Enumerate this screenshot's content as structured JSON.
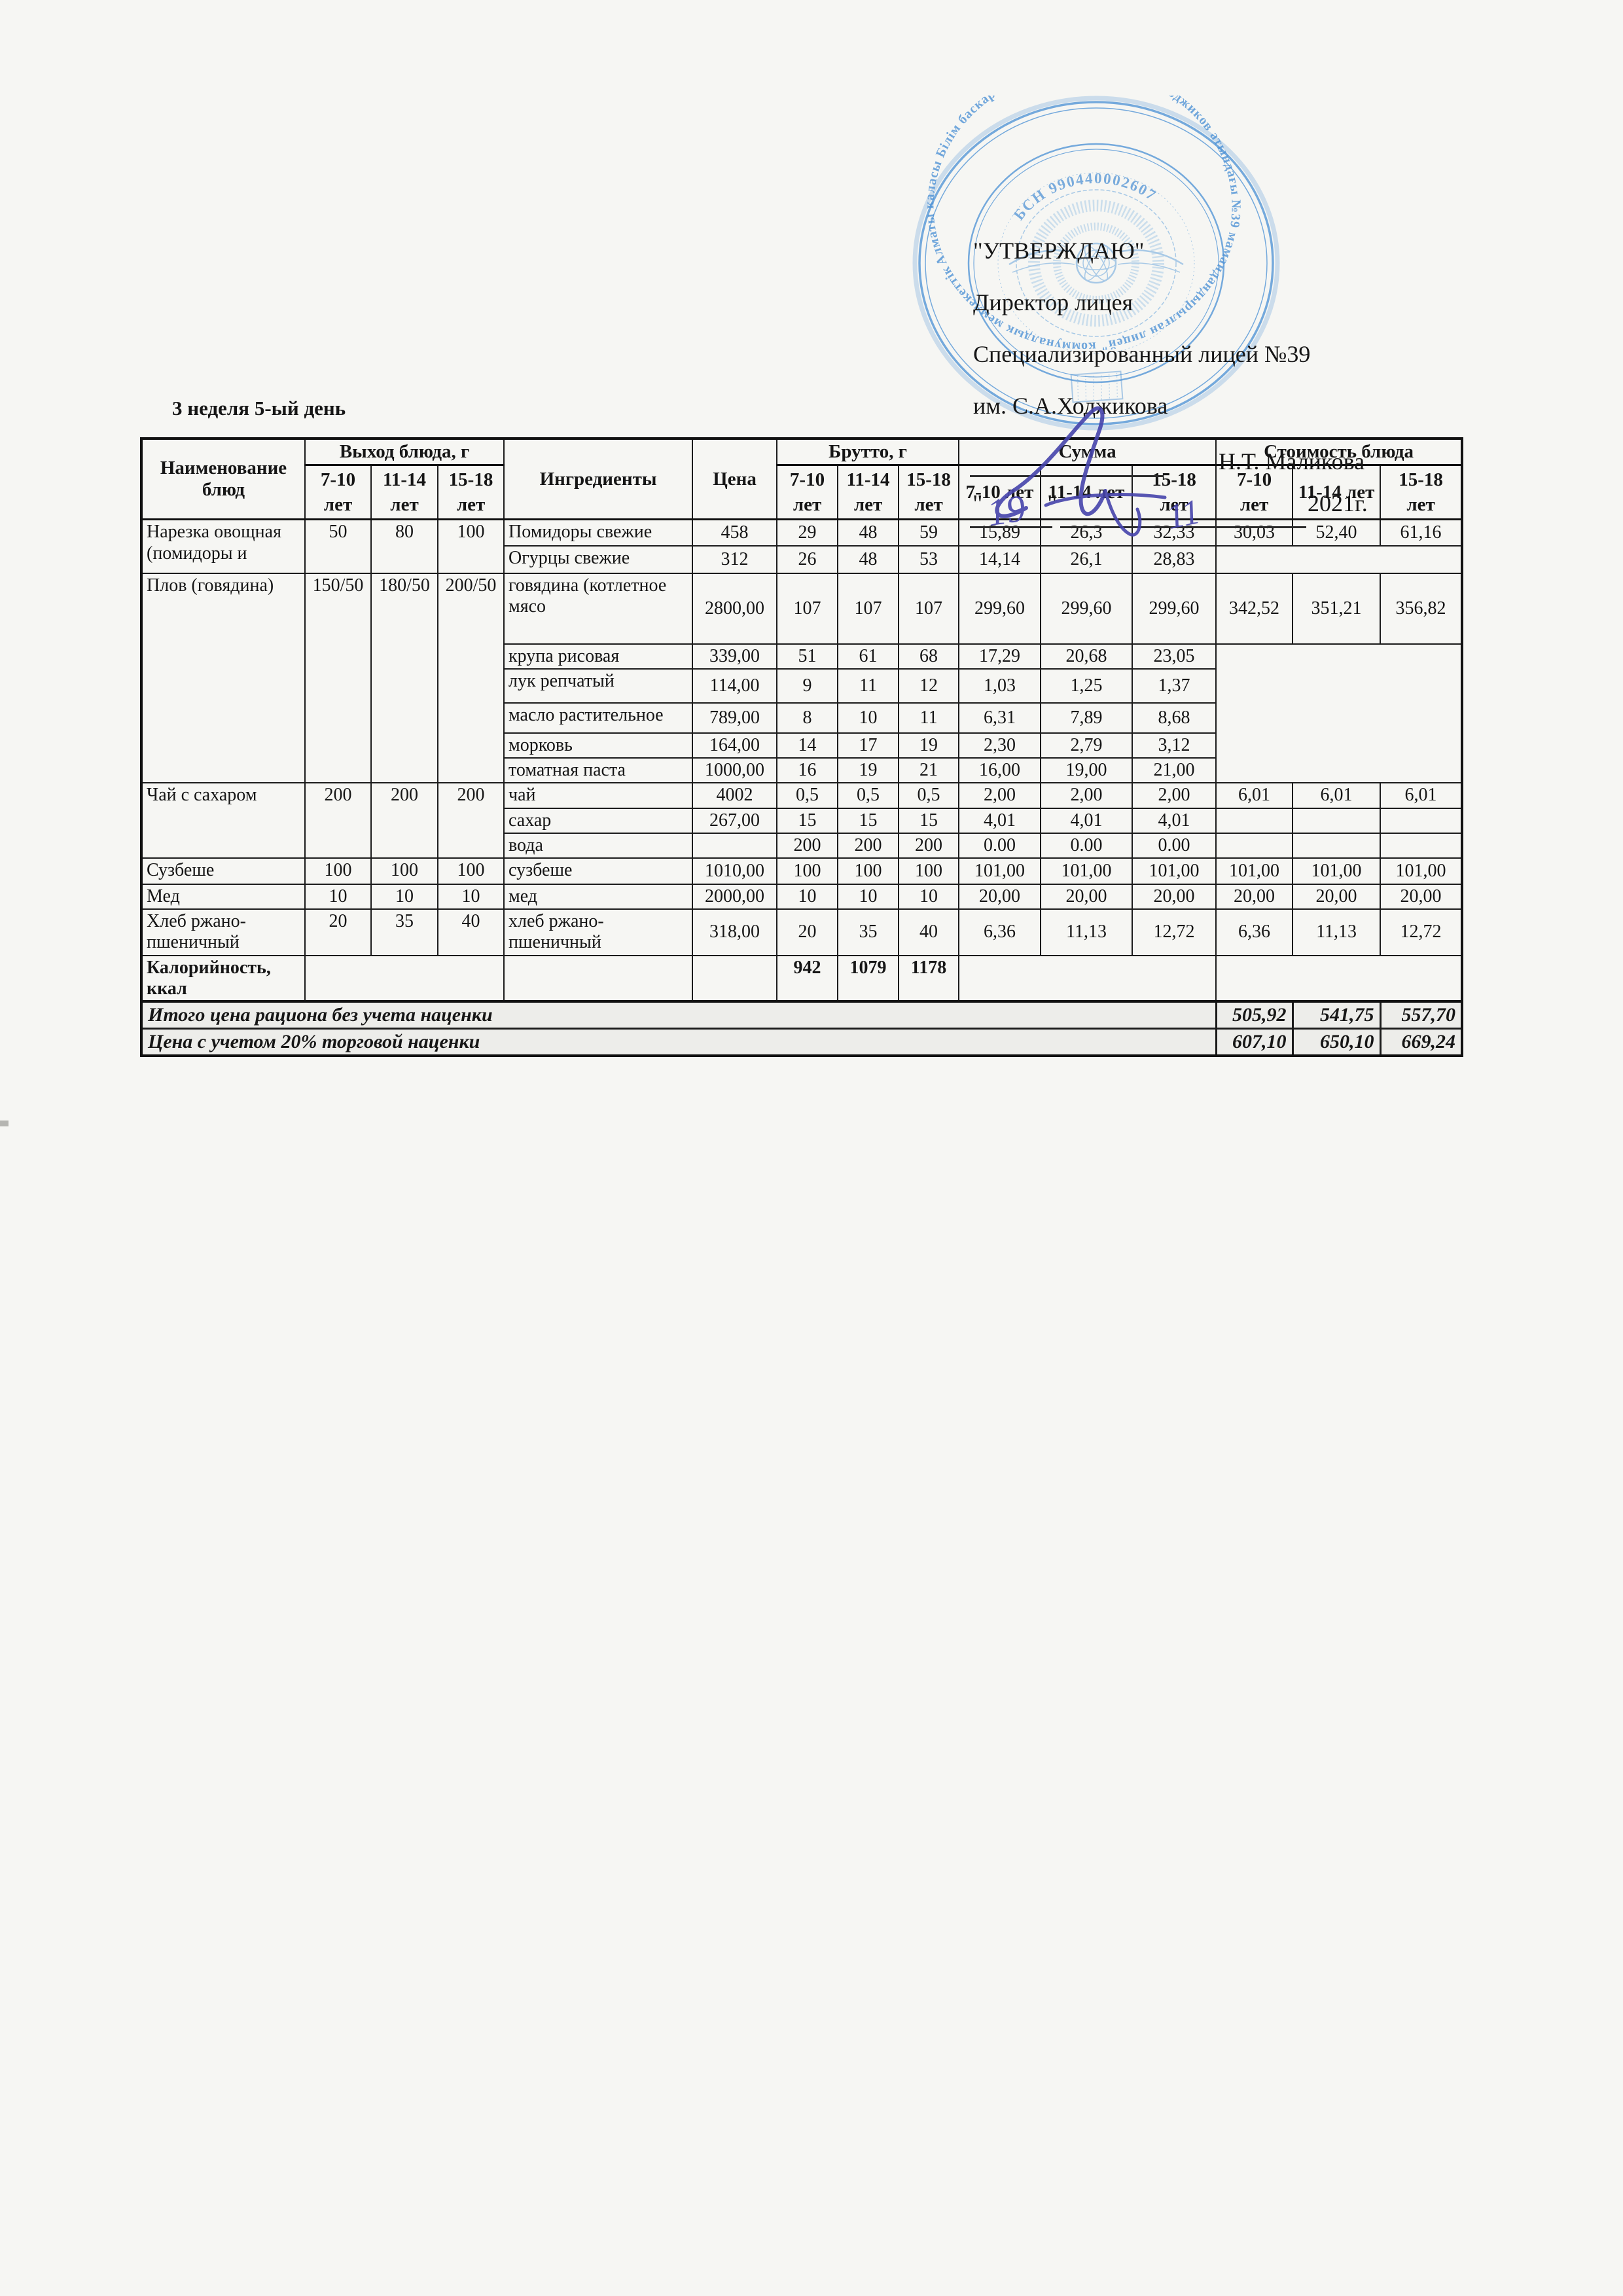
{
  "approval": {
    "approve_label": "\"УТВЕРЖДАЮ\"",
    "line1": "Директор лицея",
    "line2": "Специализированный лицей №39",
    "line3": "им. С.А.Ходжикова",
    "signer_name": "Н.Т. Маликова",
    "quote_open": "\"",
    "quote_close": "\"",
    "handwritten_day": "19",
    "handwritten_month": "11",
    "year_label": "2021г."
  },
  "stamp": {
    "ring_text": "Алматы каласы Білім баскармасының \"Сұлтан-Ахмет Ходжиков атындағы №39 мамандандырылған лицей\" коммуналдык мемлекеттік мекемесі *",
    "bsn_text": "БСН 990440002607",
    "color": "#5e9cd8"
  },
  "title": "3 неделя 5-ый день",
  "table": {
    "headers": {
      "col_name": "Наименование блюд",
      "group_output": "Выход блюда, г",
      "col_ingredients": "Ингредиенты",
      "col_price": "Цена",
      "group_brutto": "Брутто, г",
      "group_sum": "Сумма",
      "group_cost": "Стоимость блюда",
      "age1": "7-10 лет",
      "age2": "11-14 лет",
      "age3": "15-18 лет"
    },
    "rows": [
      {
        "cells": [
          {
            "v": "Нарезка овощная (помидоры и",
            "rs": 2,
            "k": "dish"
          },
          {
            "v": "50",
            "rs": 2,
            "k": "out"
          },
          {
            "v": "80",
            "rs": 2,
            "k": "out"
          },
          {
            "v": "100",
            "rs": 2,
            "k": "out"
          },
          {
            "v": "Помидоры свежие",
            "k": "ingredient"
          },
          {
            "v": "458"
          },
          {
            "v": "29"
          },
          {
            "v": "48"
          },
          {
            "v": "59"
          },
          {
            "v": "15,89"
          },
          {
            "v": "26,3"
          },
          {
            "v": "32,33"
          },
          {
            "v": "30,03"
          },
          {
            "v": "52,40"
          },
          {
            "v": "61,16"
          }
        ]
      },
      {
        "cells": [
          {
            "v": "Огурцы свежие",
            "k": "ingredient"
          },
          {
            "v": "312"
          },
          {
            "v": "26"
          },
          {
            "v": "48"
          },
          {
            "v": "53"
          },
          {
            "v": "14,14"
          },
          {
            "v": "26,1"
          },
          {
            "v": "28,83"
          },
          {
            "v": "",
            "cs": 3,
            "k": "empty"
          }
        ]
      },
      {
        "cells": [
          {
            "v": "Плов (говядина)",
            "rs": 6,
            "k": "dish"
          },
          {
            "v": "150/50",
            "rs": 6,
            "k": "out"
          },
          {
            "v": "180/50",
            "rs": 6,
            "k": "out"
          },
          {
            "v": "200/50",
            "rs": 6,
            "k": "out"
          },
          {
            "v": "говядина (котлетное мясо",
            "k": "ingredient"
          },
          {
            "v": "2800,00"
          },
          {
            "v": "107"
          },
          {
            "v": "107"
          },
          {
            "v": "107"
          },
          {
            "v": "299,60"
          },
          {
            "v": "299,60"
          },
          {
            "v": "299,60"
          },
          {
            "v": "342,52"
          },
          {
            "v": "351,21"
          },
          {
            "v": "356,82"
          }
        ]
      },
      {
        "cells": [
          {
            "v": "крупа рисовая",
            "k": "ingredient"
          },
          {
            "v": "339,00"
          },
          {
            "v": "51"
          },
          {
            "v": "61"
          },
          {
            "v": "68"
          },
          {
            "v": "17,29"
          },
          {
            "v": "20,68"
          },
          {
            "v": "23,05"
          },
          {
            "v": "",
            "cs": 3,
            "rs": 5,
            "k": "empty"
          }
        ]
      },
      {
        "cells": [
          {
            "v": "лук репчатый",
            "k": "ingredient"
          },
          {
            "v": "114,00"
          },
          {
            "v": "9"
          },
          {
            "v": "11"
          },
          {
            "v": "12"
          },
          {
            "v": "1,03"
          },
          {
            "v": "1,25"
          },
          {
            "v": "1,37"
          }
        ]
      },
      {
        "cells": [
          {
            "v": "масло растительное",
            "k": "ingredient"
          },
          {
            "v": "789,00"
          },
          {
            "v": "8"
          },
          {
            "v": "10"
          },
          {
            "v": "11"
          },
          {
            "v": "6,31"
          },
          {
            "v": "7,89"
          },
          {
            "v": "8,68"
          }
        ]
      },
      {
        "cells": [
          {
            "v": "морковь",
            "k": "ingredient"
          },
          {
            "v": "164,00"
          },
          {
            "v": "14"
          },
          {
            "v": "17"
          },
          {
            "v": "19"
          },
          {
            "v": "2,30"
          },
          {
            "v": "2,79"
          },
          {
            "v": "3,12"
          }
        ]
      },
      {
        "cells": [
          {
            "v": "томатная паста",
            "k": "ingredient"
          },
          {
            "v": "1000,00"
          },
          {
            "v": "16"
          },
          {
            "v": "19"
          },
          {
            "v": "21"
          },
          {
            "v": "16,00"
          },
          {
            "v": "19,00"
          },
          {
            "v": "21,00"
          }
        ]
      },
      {
        "cells": [
          {
            "v": "Чай с сахаром",
            "rs": 3,
            "k": "dish"
          },
          {
            "v": "200",
            "rs": 3,
            "k": "out"
          },
          {
            "v": "200",
            "rs": 3,
            "k": "out"
          },
          {
            "v": "200",
            "rs": 3,
            "k": "out"
          },
          {
            "v": "чай",
            "k": "ingredient"
          },
          {
            "v": "4002"
          },
          {
            "v": "0,5"
          },
          {
            "v": "0,5"
          },
          {
            "v": "0,5"
          },
          {
            "v": "2,00"
          },
          {
            "v": "2,00"
          },
          {
            "v": "2,00"
          },
          {
            "v": "6,01"
          },
          {
            "v": "6,01"
          },
          {
            "v": "6,01"
          }
        ]
      },
      {
        "cells": [
          {
            "v": "сахар",
            "k": "ingredient"
          },
          {
            "v": "267,00"
          },
          {
            "v": "15"
          },
          {
            "v": "15"
          },
          {
            "v": "15"
          },
          {
            "v": "4,01"
          },
          {
            "v": "4,01"
          },
          {
            "v": "4,01"
          },
          {
            "v": "",
            "k": "empty"
          },
          {
            "v": "",
            "k": "empty"
          },
          {
            "v": "",
            "k": "empty"
          }
        ]
      },
      {
        "cells": [
          {
            "v": "вода",
            "k": "ingredient"
          },
          {
            "v": "",
            "k": "empty"
          },
          {
            "v": "200"
          },
          {
            "v": "200"
          },
          {
            "v": "200"
          },
          {
            "v": "0.00"
          },
          {
            "v": "0.00"
          },
          {
            "v": "0.00"
          },
          {
            "v": "",
            "k": "empty"
          },
          {
            "v": "",
            "k": "empty"
          },
          {
            "v": "",
            "k": "empty"
          }
        ]
      },
      {
        "cells": [
          {
            "v": "Сузбеше",
            "k": "dish"
          },
          {
            "v": "100",
            "k": "out"
          },
          {
            "v": "100",
            "k": "out"
          },
          {
            "v": "100",
            "k": "out"
          },
          {
            "v": "сузбеше",
            "k": "ingredient"
          },
          {
            "v": "1010,00"
          },
          {
            "v": "100"
          },
          {
            "v": "100"
          },
          {
            "v": "100"
          },
          {
            "v": "101,00"
          },
          {
            "v": "101,00"
          },
          {
            "v": "101,00"
          },
          {
            "v": "101,00"
          },
          {
            "v": "101,00"
          },
          {
            "v": "101,00"
          }
        ]
      },
      {
        "cells": [
          {
            "v": "Мед",
            "k": "dish"
          },
          {
            "v": "10",
            "k": "out"
          },
          {
            "v": "10",
            "k": "out"
          },
          {
            "v": "10",
            "k": "out"
          },
          {
            "v": "мед",
            "k": "ingredient"
          },
          {
            "v": "2000,00"
          },
          {
            "v": "10"
          },
          {
            "v": "10"
          },
          {
            "v": "10"
          },
          {
            "v": "20,00"
          },
          {
            "v": "20,00"
          },
          {
            "v": "20,00"
          },
          {
            "v": "20,00"
          },
          {
            "v": "20,00"
          },
          {
            "v": "20,00"
          }
        ]
      },
      {
        "cells": [
          {
            "v": "Хлеб ржано-пшеничный",
            "k": "dish"
          },
          {
            "v": "20",
            "k": "out"
          },
          {
            "v": "35",
            "k": "out"
          },
          {
            "v": "40",
            "k": "out"
          },
          {
            "v": "хлеб ржано-пшеничный",
            "k": "ingredient"
          },
          {
            "v": "318,00"
          },
          {
            "v": "20"
          },
          {
            "v": "35"
          },
          {
            "v": "40"
          },
          {
            "v": "6,36"
          },
          {
            "v": "11,13"
          },
          {
            "v": "12,72"
          },
          {
            "v": "6,36"
          },
          {
            "v": "11,13"
          },
          {
            "v": "12,72"
          }
        ]
      },
      {
        "cells": [
          {
            "v": "Калорийность, ккал",
            "k": "dish-bold"
          },
          {
            "v": "",
            "cs": 3,
            "k": "empty"
          },
          {
            "v": "",
            "k": "empty"
          },
          {
            "v": "",
            "k": "empty"
          },
          {
            "v": "942",
            "k": "number-bold"
          },
          {
            "v": "1079",
            "k": "number-bold"
          },
          {
            "v": "1178",
            "k": "number-bold"
          },
          {
            "v": "",
            "cs": 3,
            "k": "empty"
          },
          {
            "v": "",
            "cs": 3,
            "k": "empty"
          }
        ]
      }
    ]
  },
  "totals": {
    "row1": {
      "label": "Итого цена рациона без учета наценки",
      "v1": "505,92",
      "v2": "541,75",
      "v3": "557,70"
    },
    "row2": {
      "label": "Цена с учетом 20% торговой наценки",
      "v1": "607,10",
      "v2": "650,10",
      "v3": "669,24"
    }
  }
}
